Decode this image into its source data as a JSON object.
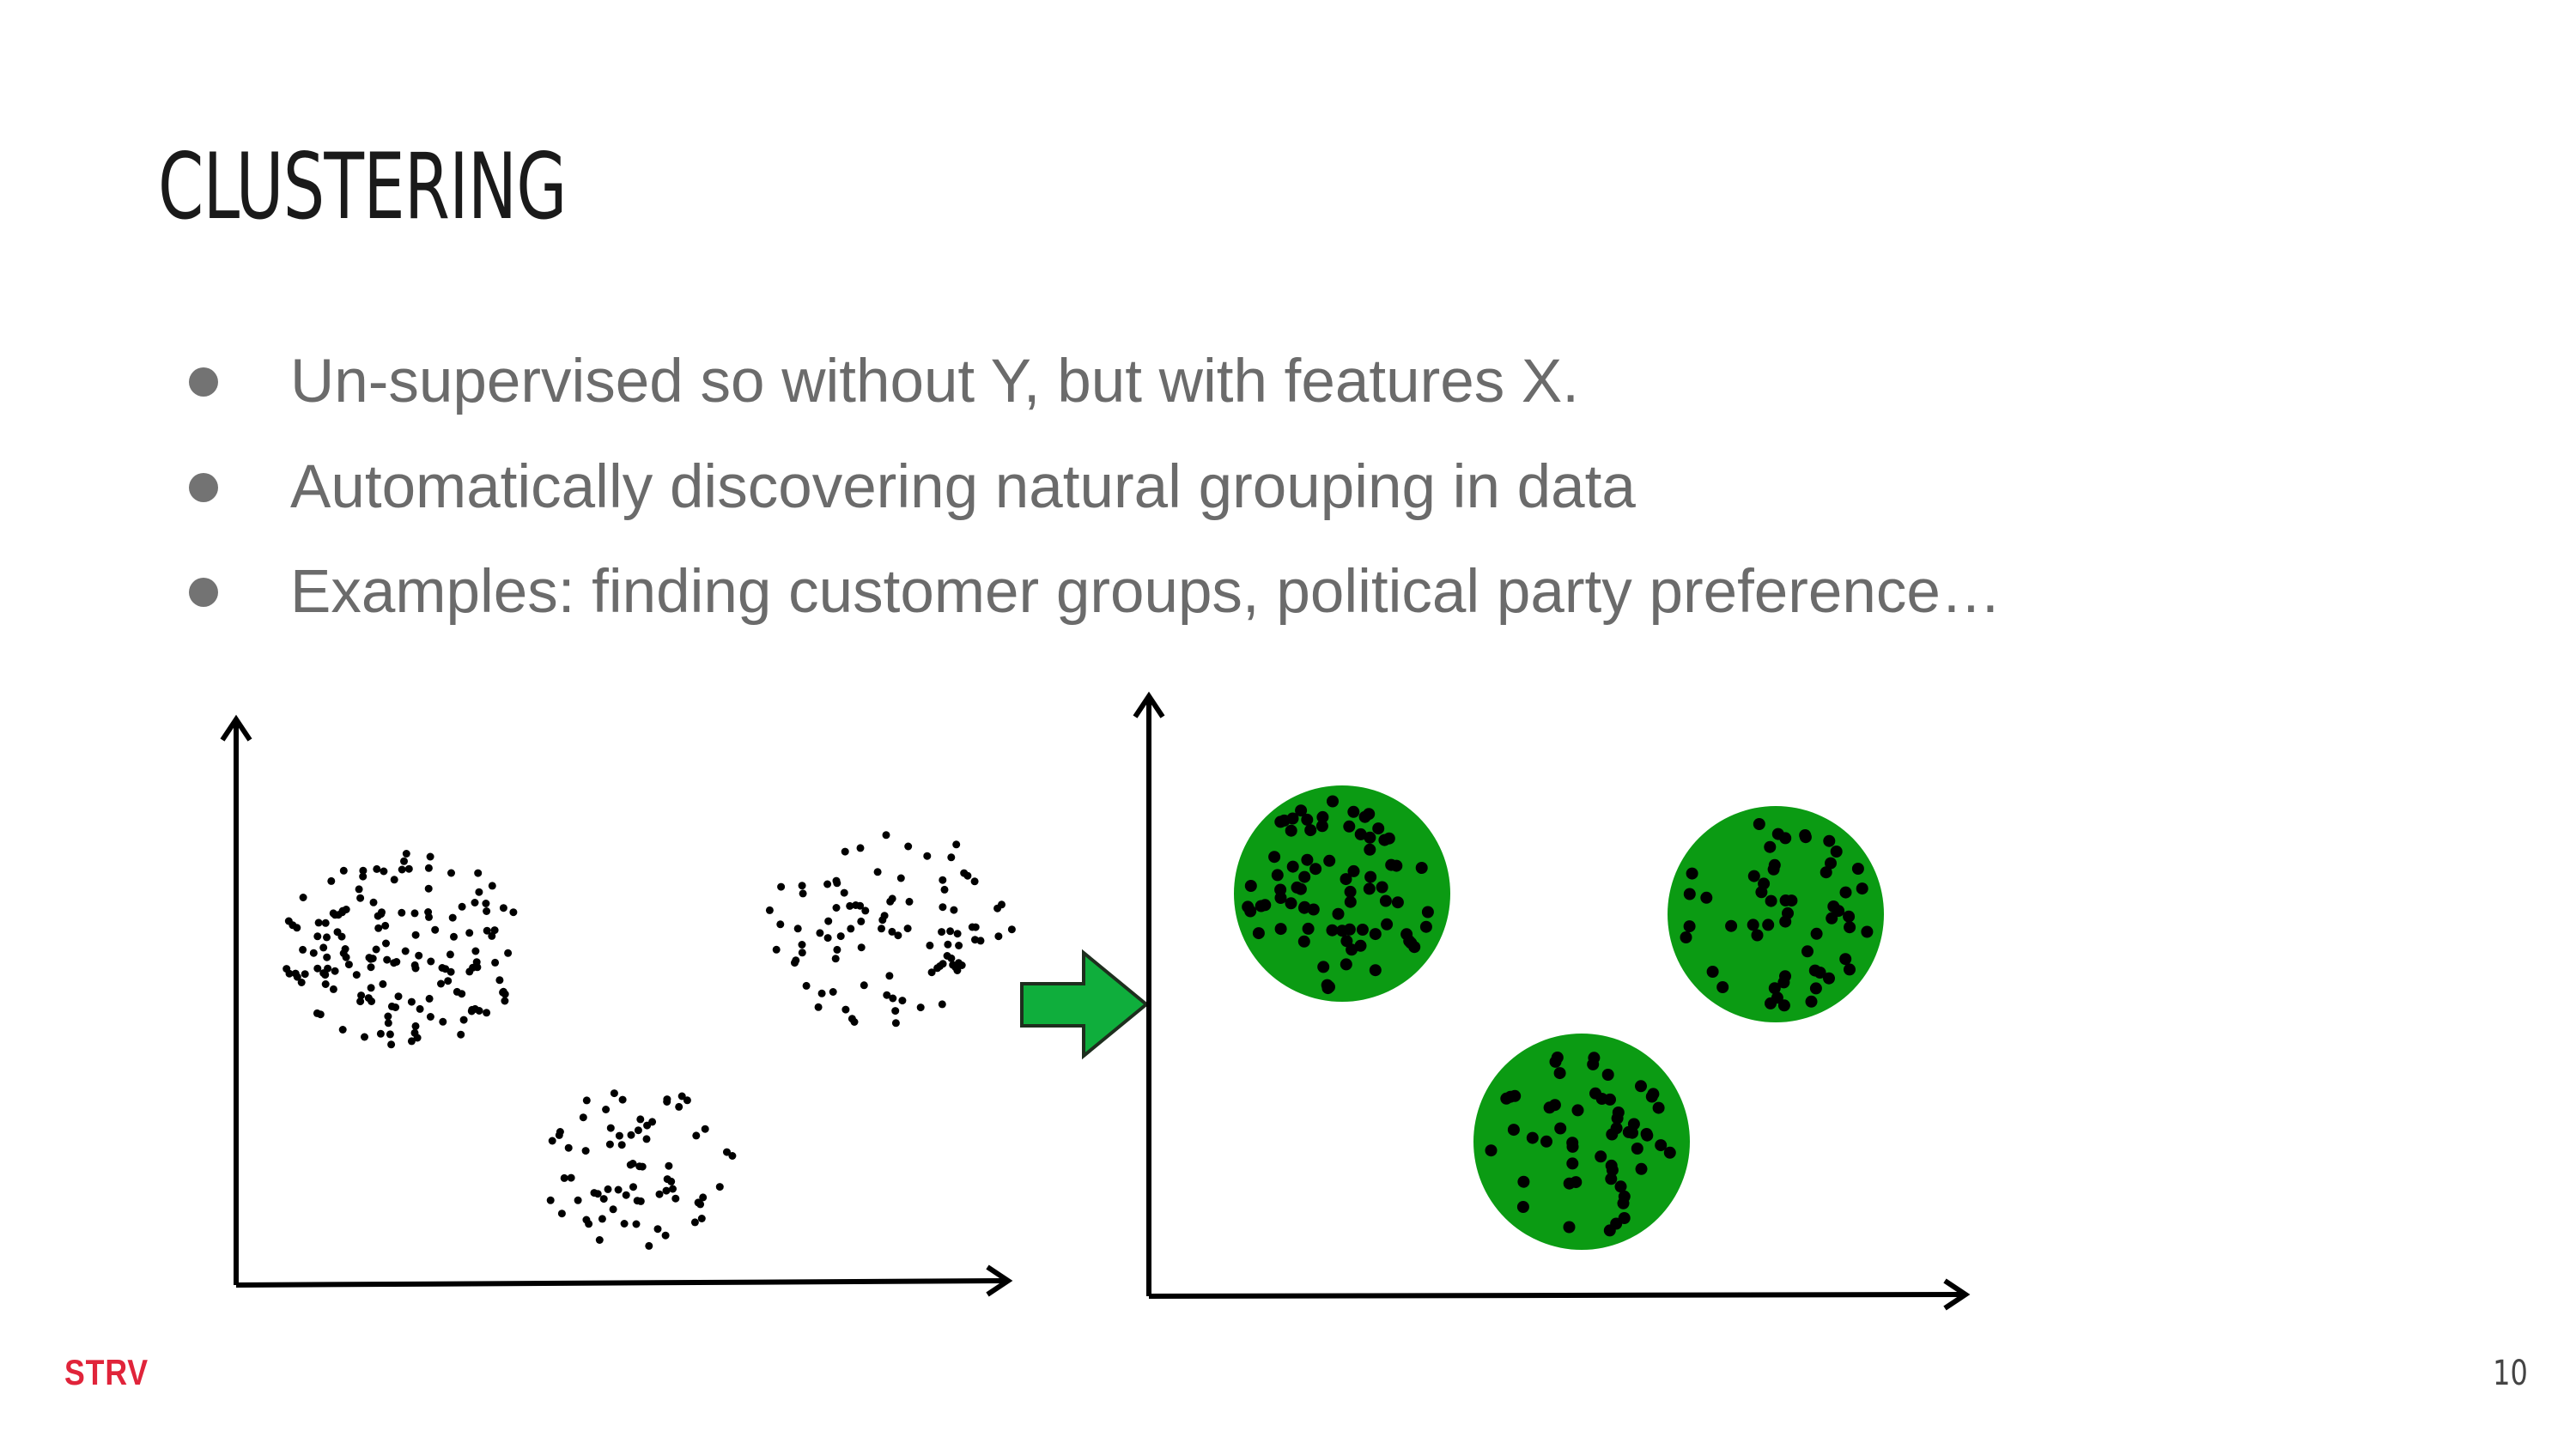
{
  "slide": {
    "title": "CLUSTERING",
    "bullets": [
      "Un-supervised so without Y, but with features X.",
      "Automatically discovering natural grouping in data",
      "Examples: finding customer groups, political party preference…"
    ]
  },
  "footer": {
    "logo_text": "STRV",
    "page_number": "10"
  },
  "colors": {
    "title": "#1a1a1a",
    "bullet_text": "#6b6b6b",
    "cluster_fill": "#0b9b13",
    "arrow_fill": "#0fae3c",
    "logo": "#e0243a"
  },
  "figure": {
    "left_plot": "unclustered scatter of points",
    "arrow": "right-arrow-icon",
    "right_plot": "three green clusters of points"
  }
}
